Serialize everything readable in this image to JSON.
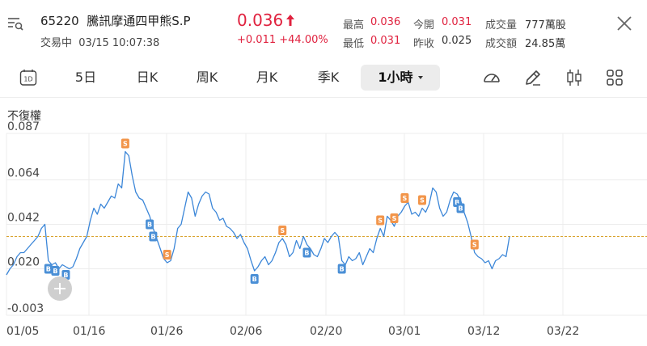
{
  "header": {
    "code": "65220",
    "name": "騰訊摩通四甲熊S.P",
    "status": "交易中",
    "datetime": "03/15 10:07:38",
    "price": "0.036",
    "change": "+0.011",
    "change_pct": "+44.00%",
    "quotes": [
      {
        "label": "最高",
        "value": "0.036"
      },
      {
        "label": "今開",
        "value": "0.031"
      },
      {
        "label": "成交量",
        "value": "777萬股"
      },
      {
        "label": "最低",
        "value": "0.031"
      },
      {
        "label": "昨收",
        "value": "0.025"
      },
      {
        "label": "成交額",
        "value": "24.85萬"
      }
    ]
  },
  "tabs": {
    "icon_1d": "1D",
    "items": [
      "5日",
      "日K",
      "周K",
      "月K",
      "季K",
      "1小時"
    ],
    "active_index": 5
  },
  "chart_label": "不復權",
  "colors": {
    "up": "#e0223f",
    "line": "#3b86d8",
    "sell_badge": "#f2954a",
    "buy_badge": "#4a8fd6",
    "ref_line": "#d9a22d"
  },
  "chart_data": {
    "type": "line",
    "y_ticks": [
      "0.087",
      "0.064",
      "0.042",
      "0.020",
      "-0.003"
    ],
    "x_ticks": [
      "01/05",
      "01/16",
      "01/26",
      "02/06",
      "02/20",
      "03/01",
      "03/12",
      "03/22"
    ],
    "ylim": [
      -0.003,
      0.087
    ],
    "reference_line": 0.036,
    "series": [
      {
        "values": [
          0.017,
          0.02,
          0.022,
          0.026,
          0.028,
          0.028,
          0.03,
          0.032,
          0.034,
          0.036,
          0.04,
          0.042,
          0.024,
          0.022,
          0.023,
          0.02,
          0.022,
          0.021,
          0.02,
          0.021,
          0.025,
          0.03,
          0.033,
          0.036,
          0.044,
          0.05,
          0.047,
          0.052,
          0.05,
          0.053,
          0.056,
          0.055,
          0.062,
          0.06,
          0.078,
          0.076,
          0.066,
          0.058,
          0.055,
          0.054,
          0.05,
          0.046,
          0.04,
          0.035,
          0.03,
          0.025,
          0.023,
          0.024,
          0.03,
          0.04,
          0.042,
          0.05,
          0.058,
          0.055,
          0.046,
          0.052,
          0.056,
          0.058,
          0.057,
          0.05,
          0.048,
          0.044,
          0.045,
          0.041,
          0.04,
          0.038,
          0.035,
          0.037,
          0.033,
          0.03,
          0.024,
          0.019,
          0.021,
          0.024,
          0.026,
          0.022,
          0.024,
          0.028,
          0.033,
          0.035,
          0.032,
          0.026,
          0.028,
          0.034,
          0.03,
          0.036,
          0.032,
          0.03,
          0.027,
          0.026,
          0.03,
          0.035,
          0.033,
          0.036,
          0.038,
          0.036,
          0.024,
          0.022,
          0.026,
          0.024,
          0.025,
          0.028,
          0.022,
          0.026,
          0.03,
          0.028,
          0.035,
          0.04,
          0.036,
          0.046,
          0.044,
          0.041,
          0.046,
          0.048,
          0.051,
          0.053,
          0.047,
          0.048,
          0.046,
          0.05,
          0.048,
          0.052,
          0.06,
          0.058,
          0.05,
          0.046,
          0.048,
          0.054,
          0.058,
          0.057,
          0.054,
          0.048,
          0.043,
          0.036,
          0.028,
          0.026,
          0.025,
          0.023,
          0.024,
          0.02,
          0.024,
          0.025,
          0.027,
          0.026,
          0.036
        ],
        "sell_points": [
          34,
          46,
          79,
          107,
          111,
          114,
          119,
          134
        ],
        "buy_points": [
          12,
          14,
          17,
          41,
          42,
          71,
          86,
          96,
          129,
          130
        ]
      }
    ]
  }
}
